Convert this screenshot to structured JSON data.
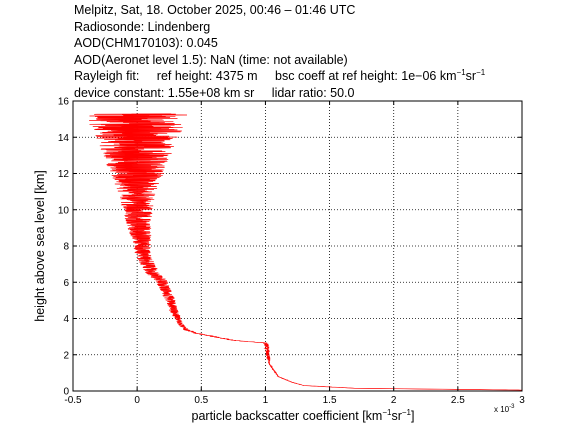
{
  "header": {
    "line1": "Melpitz, Sat, 18. October 2025, 00:46 – 01:46 UTC",
    "line2": "Radiosonde: Lindenberg",
    "line3": "AOD(CHM170103): 0.045",
    "line4": "AOD(Aeronet level 1.5): NaN   (time: not available)",
    "rayleigh_label": "Rayleigh fit:",
    "ref_height": "ref height: 4375 m",
    "bsc_coeff": "bsc coeff at ref height: 1e−06 km",
    "device_constant": "device constant: 1.55e+08 km sr",
    "lidar_ratio": "lidar ratio: 50.0"
  },
  "chart_data": {
    "type": "line",
    "xlabel_main": "particle backscatter coefficient [km",
    "ylabel": "height above sea level [km]",
    "x_exponent_base": "x 10",
    "x_exponent_power": "-3",
    "xlim": [
      -0.5,
      3.0
    ],
    "ylim": [
      0,
      16
    ],
    "x_ticks": [
      "-0.5",
      "0",
      "0.5",
      "1",
      "1.5",
      "2",
      "2.5",
      "3"
    ],
    "y_ticks": [
      "0",
      "2",
      "4",
      "6",
      "8",
      "10",
      "12",
      "14",
      "16"
    ],
    "grid": true,
    "series": [
      {
        "color": "#ff0000",
        "profile_x_e3": [
          [
            0.0,
            3.0
          ],
          [
            0.05,
            3.0
          ],
          [
            0.15,
            1.7
          ],
          [
            0.3,
            1.3
          ],
          [
            0.5,
            1.2
          ],
          [
            0.8,
            1.1
          ],
          [
            1.0,
            1.08
          ],
          [
            1.3,
            1.05
          ],
          [
            1.5,
            1.03
          ],
          [
            2.0,
            1.02
          ],
          [
            2.5,
            1.01
          ],
          [
            2.65,
            1.0
          ],
          [
            2.8,
            0.75
          ],
          [
            3.0,
            0.6
          ],
          [
            3.2,
            0.45
          ],
          [
            3.4,
            0.38
          ],
          [
            3.6,
            0.35
          ],
          [
            3.8,
            0.33
          ],
          [
            4.0,
            0.32
          ],
          [
            4.2,
            0.3
          ],
          [
            4.5,
            0.28
          ],
          [
            5.0,
            0.26
          ],
          [
            5.5,
            0.23
          ],
          [
            6.0,
            0.2
          ],
          [
            6.5,
            0.12
          ],
          [
            7.0,
            0.08
          ],
          [
            7.5,
            0.05
          ],
          [
            8.0,
            0.04
          ],
          [
            8.5,
            0.03
          ],
          [
            9.0,
            0.02
          ],
          [
            9.5,
            0.01
          ],
          [
            10.0,
            0.0
          ],
          [
            10.5,
            0.0
          ],
          [
            11.0,
            0.0
          ],
          [
            11.5,
            0.0
          ],
          [
            12.0,
            0.0
          ],
          [
            12.5,
            0.0
          ],
          [
            13.0,
            0.0
          ],
          [
            13.5,
            0.0
          ],
          [
            14.0,
            0.0
          ],
          [
            14.5,
            0.0
          ],
          [
            15.0,
            0.0
          ],
          [
            15.3,
            0.0
          ]
        ]
      }
    ]
  }
}
